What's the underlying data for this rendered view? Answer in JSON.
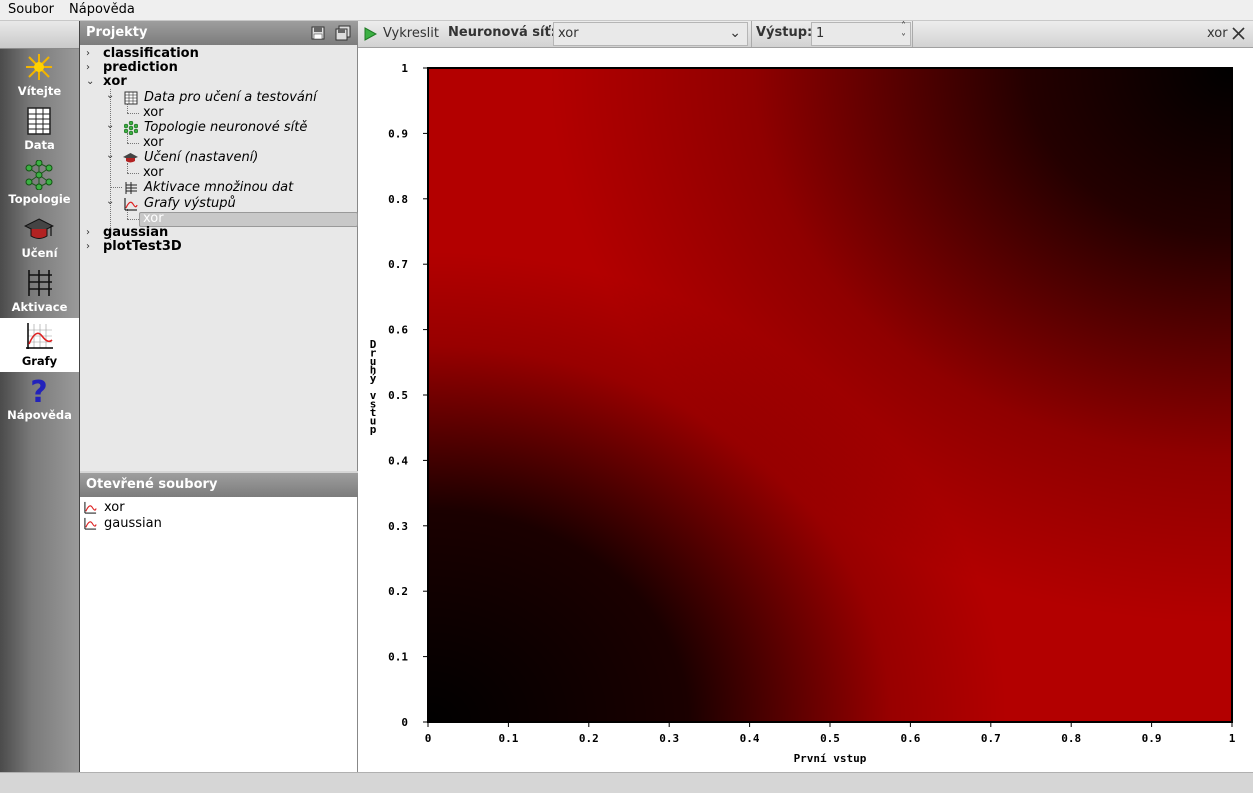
{
  "menu": {
    "items": [
      "Soubor",
      "Nápověda"
    ]
  },
  "sidebar": {
    "items": [
      {
        "label": "Vítejte",
        "icon": "welcome-icon"
      },
      {
        "label": "Data",
        "icon": "data-table-icon"
      },
      {
        "label": "Topologie",
        "icon": "topology-icon"
      },
      {
        "label": "Učení",
        "icon": "graduation-cap-icon"
      },
      {
        "label": "Aktivace",
        "icon": "activation-icon"
      },
      {
        "label": "Grafy",
        "icon": "graph-icon",
        "active": true
      },
      {
        "label": "Nápověda",
        "icon": "help-icon"
      }
    ]
  },
  "projects": {
    "title": "Projekty",
    "tree": {
      "classification": "classification",
      "prediction": "prediction",
      "xor": "xor",
      "data_group": "Data pro učení a testování",
      "data_child": "xor",
      "topology_group": "Topologie neuronové sítě",
      "topology_child": "xor",
      "learning_group": "Učení (nastavení)",
      "learning_child": "xor",
      "activation_item": "Aktivace množinou dat",
      "graphs_group": "Grafy výstupů",
      "graphs_child": "xor",
      "gaussian": "gaussian",
      "plotTest3D": "plotTest3D"
    }
  },
  "open_files": {
    "title": "Otevřené soubory",
    "items": [
      "xor",
      "gaussian"
    ]
  },
  "toolbar": {
    "draw_label": "Vykreslit",
    "network_label": "Neuronová síť:",
    "network_value": "xor",
    "output_label": "Výstup:",
    "output_value": "1",
    "tab_name": "xor"
  },
  "chart_data": {
    "type": "heatmap",
    "xlabel": "První vstup",
    "ylabel": "Druhý vstup",
    "xlim": [
      0,
      1
    ],
    "ylim": [
      0,
      1
    ],
    "xticks": [
      "0",
      "0.1",
      "0.2",
      "0.3",
      "0.4",
      "0.5",
      "0.6",
      "0.7",
      "0.8",
      "0.9",
      "1"
    ],
    "yticks": [
      "0",
      "0.1",
      "0.2",
      "0.3",
      "0.4",
      "0.5",
      "0.6",
      "0.7",
      "0.8",
      "0.9",
      "1"
    ],
    "colormap": {
      "low": "#000000",
      "high": "#b30000"
    },
    "description_of_values": "output ~0 near (0,0) and (1,1), ~1 near (1,0) and (0,1)"
  },
  "colors": {
    "accent_green": "#3cb043",
    "heat_red": "#b30000"
  }
}
